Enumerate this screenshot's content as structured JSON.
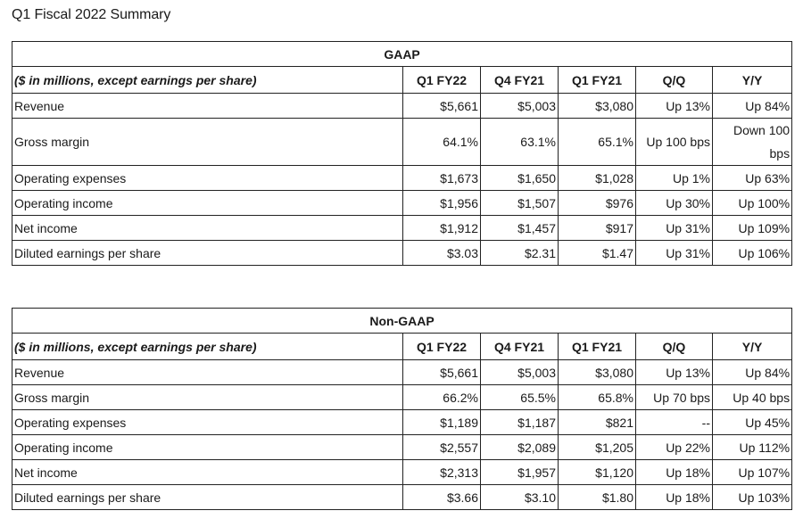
{
  "page_title": "Q1 Fiscal 2022 Summary",
  "tables": [
    {
      "title": "GAAP",
      "description": "($ in millions, except earnings per share)",
      "columns": [
        "Q1 FY22",
        "Q4 FY21",
        "Q1 FY21",
        "Q/Q",
        "Y/Y"
      ],
      "rows": [
        {
          "label": "Revenue",
          "values": [
            "$5,661",
            "$5,003",
            "$3,080",
            "Up 13%",
            "Up 84%"
          ]
        },
        {
          "label": "Gross margin",
          "values": [
            "64.1%",
            "63.1%",
            "65.1%",
            "Up 100 bps",
            "Down 100 bps"
          ]
        },
        {
          "label": "Operating expenses",
          "values": [
            "$1,673",
            "$1,650",
            "$1,028",
            "Up 1%",
            "Up 63%"
          ]
        },
        {
          "label": "Operating income",
          "values": [
            "$1,956",
            "$1,507",
            "$976",
            "Up 30%",
            "Up 100%"
          ]
        },
        {
          "label": "Net income",
          "values": [
            "$1,912",
            "$1,457",
            "$917",
            "Up 31%",
            "Up 109%"
          ]
        },
        {
          "label": "Diluted earnings per share",
          "values": [
            "$3.03",
            "$2.31",
            "$1.47",
            "Up 31%",
            "Up 106%"
          ]
        }
      ]
    },
    {
      "title": "Non-GAAP",
      "description": "($ in millions, except earnings per share)",
      "columns": [
        "Q1 FY22",
        "Q4 FY21",
        "Q1 FY21",
        "Q/Q",
        "Y/Y"
      ],
      "rows": [
        {
          "label": "Revenue",
          "values": [
            "$5,661",
            "$5,003",
            "$3,080",
            "Up 13%",
            "Up 84%"
          ]
        },
        {
          "label": "Gross margin",
          "values": [
            "66.2%",
            "65.5%",
            "65.8%",
            "Up 70 bps",
            "Up 40 bps"
          ]
        },
        {
          "label": "Operating expenses",
          "values": [
            "$1,189",
            "$1,187",
            "$821",
            "--",
            "Up 45%"
          ]
        },
        {
          "label": "Operating income",
          "values": [
            "$2,557",
            "$2,089",
            "$1,205",
            "Up 22%",
            "Up 112%"
          ]
        },
        {
          "label": "Net income",
          "values": [
            "$2,313",
            "$1,957",
            "$1,120",
            "Up 18%",
            "Up 107%"
          ]
        },
        {
          "label": "Diluted earnings per share",
          "values": [
            "$3.66",
            "$3.10",
            "$1.80",
            "Up 18%",
            "Up 103%"
          ]
        }
      ]
    }
  ]
}
